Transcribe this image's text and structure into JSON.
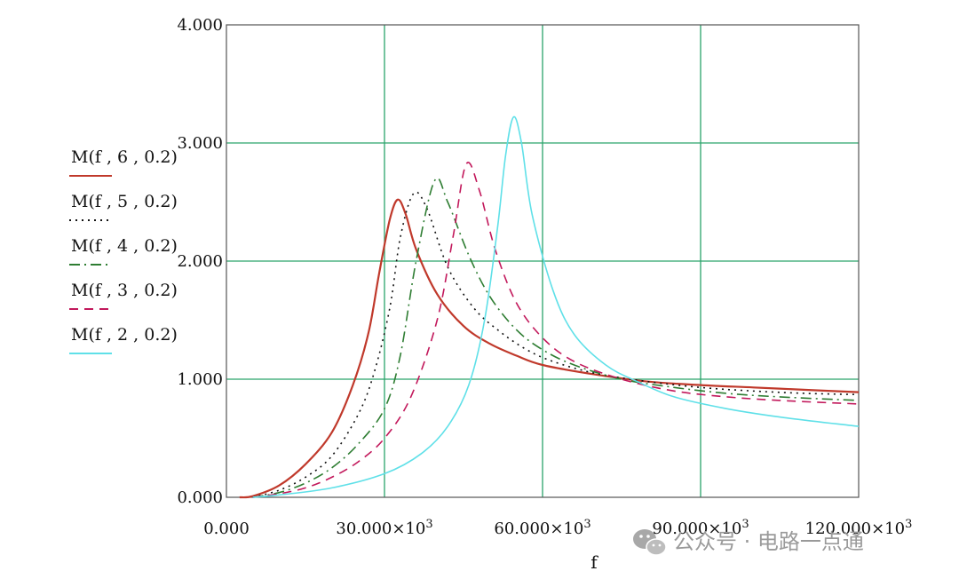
{
  "chart_data": {
    "type": "line",
    "title": "",
    "xlabel": "f",
    "ylabel": "",
    "xlim": [
      0,
      120000
    ],
    "ylim": [
      0,
      4
    ],
    "grid": true,
    "legend_position": "left",
    "x_ticks": [
      {
        "value": 0,
        "mantissa": "0.000",
        "exp": ""
      },
      {
        "value": 30000,
        "mantissa": "30.000×10",
        "exp": "3"
      },
      {
        "value": 60000,
        "mantissa": "60.000×10",
        "exp": "3"
      },
      {
        "value": 90000,
        "mantissa": "90.000×10",
        "exp": "3"
      },
      {
        "value": 120000,
        "mantissa": "120.000×10",
        "exp": "3"
      }
    ],
    "y_ticks": [
      {
        "value": 0,
        "label": "0.000"
      },
      {
        "value": 1,
        "label": "1.000"
      },
      {
        "value": 2,
        "label": "2.000"
      },
      {
        "value": 3,
        "label": "3.000"
      },
      {
        "value": 4,
        "label": "4.000"
      }
    ],
    "series": [
      {
        "name": "M(f , 6 , 0.2)",
        "color": "#c0392b",
        "style": "solid",
        "x": [
          2500,
          5000,
          10000,
          15000,
          20000,
          24000,
          27000,
          29000,
          31000,
          32500,
          34000,
          36000,
          40000,
          45000,
          50000,
          55000,
          60000,
          70000,
          80000,
          90000,
          100000,
          110000,
          120000
        ],
        "y": [
          0.0,
          0.01,
          0.1,
          0.28,
          0.55,
          0.95,
          1.4,
          1.9,
          2.35,
          2.52,
          2.4,
          2.1,
          1.72,
          1.45,
          1.3,
          1.2,
          1.12,
          1.04,
          0.98,
          0.95,
          0.93,
          0.91,
          0.89
        ]
      },
      {
        "name": "M(f , 5 , 0.2)",
        "color": "#111111",
        "style": "dotted",
        "x": [
          5000,
          10000,
          15000,
          20000,
          25000,
          28000,
          31000,
          33000,
          35500,
          38000,
          42000,
          47000,
          52000,
          57000,
          62000,
          70000,
          80000,
          90000,
          100000,
          110000,
          120000
        ],
        "y": [
          0.0,
          0.06,
          0.17,
          0.35,
          0.7,
          1.05,
          1.6,
          2.2,
          2.57,
          2.45,
          1.95,
          1.6,
          1.4,
          1.25,
          1.15,
          1.05,
          0.98,
          0.93,
          0.9,
          0.88,
          0.87
        ]
      },
      {
        "name": "M(f , 4 , 0.2)",
        "color": "#2e7d32",
        "style": "dashdot",
        "x": [
          5000,
          10000,
          15000,
          20000,
          25000,
          30000,
          33000,
          36000,
          39500,
          42000,
          46000,
          50000,
          55000,
          60000,
          66000,
          75000,
          85000,
          95000,
          105000,
          120000
        ],
        "y": [
          0.0,
          0.04,
          0.12,
          0.25,
          0.45,
          0.75,
          1.2,
          2.0,
          2.68,
          2.5,
          2.05,
          1.7,
          1.42,
          1.25,
          1.12,
          1.0,
          0.93,
          0.88,
          0.85,
          0.82
        ]
      },
      {
        "name": "M(f , 3 , 0.2)",
        "color": "#c2185b",
        "style": "dashed",
        "x": [
          5000,
          10000,
          15000,
          20000,
          25000,
          30000,
          35000,
          40000,
          43000,
          45500,
          48000,
          51000,
          55000,
          60000,
          66000,
          75000,
          85000,
          95000,
          105000,
          120000
        ],
        "y": [
          0.0,
          0.03,
          0.08,
          0.17,
          0.3,
          0.5,
          0.85,
          1.5,
          2.2,
          2.82,
          2.6,
          2.1,
          1.65,
          1.35,
          1.15,
          1.0,
          0.9,
          0.85,
          0.82,
          0.79
        ]
      },
      {
        "name": "M(f , 2 , 0.2)",
        "color": "#5fe0e8",
        "style": "solid",
        "x": [
          5000,
          10000,
          20000,
          30000,
          37000,
          42000,
          46000,
          49000,
          51500,
          53000,
          54500,
          56000,
          58000,
          62000,
          66000,
          72000,
          78000,
          85000,
          95000,
          105000,
          120000
        ],
        "y": [
          0.0,
          0.02,
          0.08,
          0.2,
          0.37,
          0.6,
          0.95,
          1.5,
          2.3,
          2.9,
          3.22,
          3.0,
          2.4,
          1.75,
          1.38,
          1.12,
          0.98,
          0.85,
          0.75,
          0.68,
          0.6
        ]
      }
    ]
  },
  "watermark": {
    "icon": "wechat-icon",
    "text": "公众号 · 电路一点通"
  }
}
